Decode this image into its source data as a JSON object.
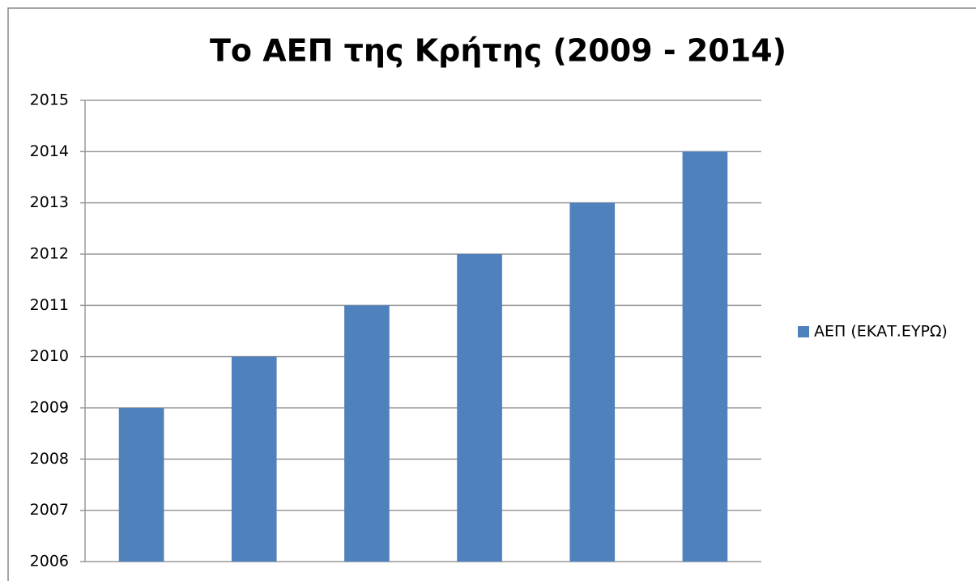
{
  "chart_data": {
    "type": "bar",
    "title": "Το ΑΕΠ της Κρήτης (2009 - 2014)",
    "categories": [
      null,
      null,
      null,
      null,
      null,
      null
    ],
    "series": [
      {
        "name": "ΑΕΠ (ΕΚΑΤ.ΕΥΡΩ)",
        "color": "#4f81bd",
        "values": [
          2009,
          2010,
          2011,
          2012,
          2013,
          2014
        ]
      }
    ],
    "ylim": [
      2006,
      2015
    ],
    "yticks": [
      2006,
      2007,
      2008,
      2009,
      2010,
      2011,
      2012,
      2013,
      2014,
      2015
    ],
    "grid": true,
    "legend": "right"
  }
}
